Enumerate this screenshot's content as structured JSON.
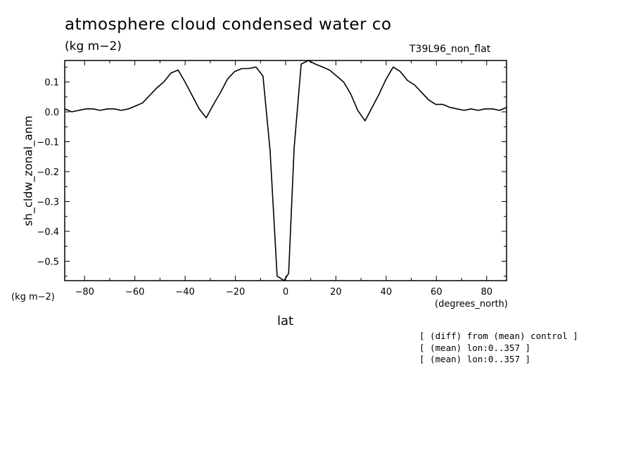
{
  "title": "atmosphere cloud condensed water co",
  "units": "(kg m−2)",
  "run_label": "T39L96_non_flat",
  "y_units_label": "(kg m−2)",
  "x_units_label": "(degrees_north)",
  "notes": [
    "[ (diff) from (mean) control ]",
    "[ (mean) lon:0..357 ]",
    "[ (mean) lon:0..357 ]"
  ],
  "chart_data": {
    "type": "line",
    "xlabel": "lat",
    "ylabel": "sh_cldw_zonal_anm",
    "xlim": [
      -87.9,
      87.9
    ],
    "ylim": [
      -0.565,
      0.172
    ],
    "xticks": [
      -80,
      -60,
      -40,
      -20,
      0,
      20,
      40,
      60,
      80
    ],
    "xtick_labels": [
      "−80",
      "−60",
      "−40",
      "−20",
      "0",
      "20",
      "40",
      "60",
      "80"
    ],
    "yticks": [
      0.1,
      0.0,
      -0.1,
      -0.2,
      -0.3,
      -0.4,
      -0.5
    ],
    "ytick_labels": [
      "0.1",
      "0.0",
      "−0.1",
      "−0.2",
      "−0.3",
      "−0.4",
      "−0.5"
    ],
    "grid": false,
    "series": [
      {
        "x": [
          -87.9,
          -85.1,
          -82.3,
          -79.4,
          -76.6,
          -73.8,
          -71.0,
          -68.2,
          -65.4,
          -62.5,
          -59.7,
          -56.9,
          -54.1,
          -51.3,
          -48.5,
          -45.6,
          -42.8,
          -40.0,
          -37.2,
          -34.4,
          -31.6,
          -28.7,
          -25.9,
          -23.1,
          -20.3,
          -17.5,
          -14.7,
          -11.8,
          -9.0,
          -6.2,
          -3.4,
          -0.6,
          1.2,
          3.4,
          6.2,
          9.0,
          11.8,
          14.7,
          17.5,
          20.3,
          23.1,
          25.9,
          28.7,
          31.6,
          34.4,
          37.2,
          40.0,
          42.8,
          45.6,
          48.5,
          51.3,
          54.1,
          56.9,
          59.7,
          62.5,
          65.4,
          68.2,
          71.0,
          73.8,
          76.6,
          79.4,
          82.3,
          85.1,
          87.9
        ],
        "y": [
          0.01,
          0.0,
          0.005,
          0.01,
          0.01,
          0.005,
          0.01,
          0.01,
          0.005,
          0.01,
          0.02,
          0.03,
          0.055,
          0.08,
          0.1,
          0.13,
          0.14,
          0.1,
          0.055,
          0.01,
          -0.02,
          0.025,
          0.065,
          0.11,
          0.135,
          0.145,
          0.145,
          0.15,
          0.12,
          -0.13,
          -0.55,
          -0.565,
          -0.54,
          -0.12,
          0.16,
          0.172,
          0.16,
          0.15,
          0.14,
          0.12,
          0.1,
          0.06,
          0.005,
          -0.03,
          0.015,
          0.06,
          0.11,
          0.15,
          0.135,
          0.105,
          0.09,
          0.065,
          0.04,
          0.025,
          0.025,
          0.015,
          0.01,
          0.005,
          0.01,
          0.005,
          0.01,
          0.01,
          0.005,
          0.015
        ]
      }
    ]
  }
}
